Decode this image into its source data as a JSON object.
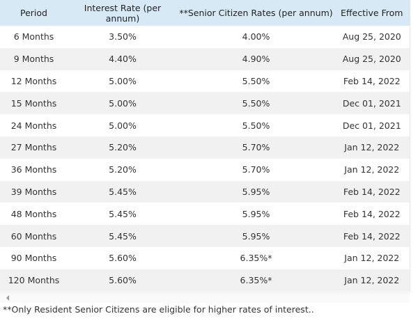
{
  "table": {
    "headers": [
      "Period",
      "Interest Rate (per annum)",
      "**Senior Citizen Rates (per annum)",
      "Effective From"
    ],
    "rows": [
      [
        "6 Months",
        "3.50%",
        "4.00%",
        "Aug 25, 2020"
      ],
      [
        "9 Months",
        "4.40%",
        "4.90%",
        "Aug 25, 2020"
      ],
      [
        "12 Months",
        "5.00%",
        "5.50%",
        "Feb 14, 2022"
      ],
      [
        "15 Months",
        "5.00%",
        "5.50%",
        "Dec 01, 2021"
      ],
      [
        "24 Months",
        "5.00%",
        "5.50%",
        "Dec 01, 2021"
      ],
      [
        "27 Months",
        "5.20%",
        "5.70%",
        "Jan 12, 2022"
      ],
      [
        "36 Months",
        "5.20%",
        "5.70%",
        "Jan 12, 2022"
      ],
      [
        "39 Months",
        "5.45%",
        "5.95%",
        "Feb 14, 2022"
      ],
      [
        "48 Months",
        "5.45%",
        "5.95%",
        "Feb 14, 2022"
      ],
      [
        "60 Months",
        "5.45%",
        "5.95%",
        "Feb 14, 2022"
      ],
      [
        "90 Months",
        "5.60%",
        "6.35%*",
        "Jan 12, 2022"
      ],
      [
        "120 Months",
        "5.60%",
        "6.35%*",
        "Jan 12, 2022"
      ]
    ]
  },
  "footnote": "**Only Resident Senior Citizens are eligible for higher rates of interest.."
}
